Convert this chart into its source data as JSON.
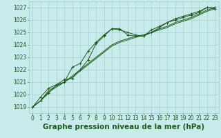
{
  "title": "Graphe pression niveau de la mer (hPa)",
  "bg_color": "#c8eaea",
  "grid_color": "#a0c8c8",
  "line_color": "#1a5c1a",
  "text_color": "#1a5c1a",
  "xlim": [
    -0.5,
    23.5
  ],
  "ylim": [
    1018.5,
    1027.5
  ],
  "yticks": [
    1019,
    1020,
    1021,
    1022,
    1023,
    1024,
    1025,
    1026,
    1027
  ],
  "xticks": [
    0,
    1,
    2,
    3,
    4,
    5,
    6,
    7,
    8,
    9,
    10,
    11,
    12,
    13,
    14,
    15,
    16,
    17,
    18,
    19,
    20,
    21,
    22,
    23
  ],
  "series": [
    [
      1019.0,
      1019.8,
      1020.5,
      1020.8,
      1021.0,
      1022.2,
      1022.5,
      1023.5,
      1024.2,
      1024.8,
      1025.3,
      1025.2,
      1025.0,
      1024.8,
      1024.7,
      1025.2,
      1025.5,
      1025.8,
      1026.0,
      1026.2,
      1026.4,
      1026.6,
      1027.0,
      1027.0
    ],
    [
      1019.0,
      1019.5,
      1020.3,
      1020.7,
      1021.0,
      1021.5,
      1022.0,
      1022.5,
      1023.0,
      1023.5,
      1024.0,
      1024.3,
      1024.5,
      1024.7,
      1024.8,
      1025.0,
      1025.3,
      1025.5,
      1025.8,
      1026.0,
      1026.2,
      1026.5,
      1026.8,
      1027.0
    ],
    [
      1019.0,
      1019.5,
      1020.2,
      1020.6,
      1021.0,
      1021.4,
      1021.9,
      1022.4,
      1022.9,
      1023.4,
      1023.9,
      1024.2,
      1024.4,
      1024.6,
      1024.8,
      1025.0,
      1025.2,
      1025.4,
      1025.7,
      1025.9,
      1026.1,
      1026.4,
      1026.7,
      1026.9
    ],
    [
      1019.0,
      1019.5,
      1020.1,
      1020.8,
      1021.2,
      1021.3,
      1022.0,
      1022.8,
      1024.1,
      1024.7,
      1025.3,
      1025.3,
      1024.8,
      1024.7,
      1024.7,
      1025.0,
      1025.4,
      1025.8,
      1026.1,
      1026.3,
      1026.5,
      1026.7,
      1027.0,
      1026.9
    ]
  ],
  "marker_series": [
    0,
    3
  ],
  "title_fontsize": 7.5,
  "tick_fontsize": 5.5
}
